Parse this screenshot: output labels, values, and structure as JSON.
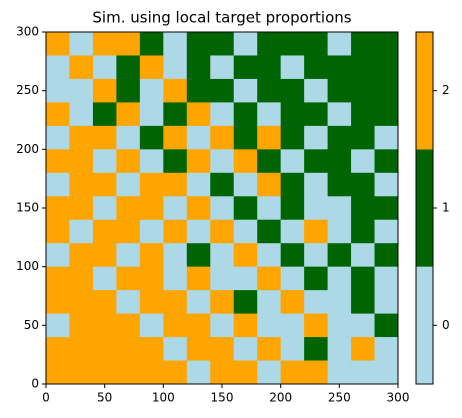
{
  "chart_data": {
    "type": "heatmap",
    "title": "Sim. using local target proportions",
    "xlim": [
      0,
      300
    ],
    "ylim": [
      0,
      300
    ],
    "xticks": [
      0,
      50,
      100,
      150,
      200,
      250,
      300
    ],
    "yticks": [
      0,
      50,
      100,
      150,
      200,
      250,
      300
    ],
    "z": [
      [
        2,
        0,
        2,
        2,
        1,
        0,
        1,
        1,
        0,
        1,
        1,
        1,
        0,
        1,
        1
      ],
      [
        0,
        2,
        0,
        1,
        2,
        0,
        1,
        0,
        1,
        1,
        0,
        1,
        1,
        1,
        1
      ],
      [
        0,
        0,
        2,
        1,
        0,
        2,
        1,
        1,
        0,
        1,
        1,
        0,
        1,
        1,
        1
      ],
      [
        2,
        0,
        1,
        2,
        0,
        1,
        2,
        0,
        1,
        0,
        1,
        1,
        0,
        1,
        1
      ],
      [
        0,
        2,
        2,
        0,
        1,
        2,
        0,
        2,
        1,
        2,
        1,
        0,
        1,
        1,
        0
      ],
      [
        2,
        2,
        0,
        2,
        0,
        1,
        2,
        0,
        2,
        1,
        0,
        1,
        1,
        0,
        1
      ],
      [
        0,
        2,
        2,
        0,
        2,
        2,
        0,
        1,
        0,
        2,
        1,
        0,
        1,
        1,
        0
      ],
      [
        2,
        2,
        0,
        2,
        2,
        0,
        2,
        0,
        1,
        0,
        1,
        0,
        0,
        1,
        1
      ],
      [
        2,
        0,
        2,
        2,
        0,
        2,
        0,
        2,
        0,
        1,
        0,
        2,
        0,
        1,
        0
      ],
      [
        0,
        2,
        2,
        0,
        2,
        0,
        1,
        0,
        2,
        0,
        1,
        0,
        1,
        0,
        1
      ],
      [
        2,
        2,
        0,
        2,
        2,
        0,
        2,
        0,
        0,
        2,
        0,
        1,
        0,
        1,
        0
      ],
      [
        2,
        2,
        2,
        0,
        2,
        2,
        0,
        2,
        1,
        0,
        2,
        0,
        0,
        1,
        0
      ],
      [
        0,
        2,
        2,
        2,
        0,
        2,
        2,
        0,
        2,
        0,
        0,
        2,
        0,
        0,
        1
      ],
      [
        2,
        2,
        2,
        2,
        2,
        0,
        2,
        2,
        0,
        2,
        0,
        1,
        0,
        2,
        0
      ],
      [
        2,
        2,
        2,
        2,
        2,
        2,
        0,
        2,
        2,
        0,
        2,
        2,
        0,
        0,
        0
      ]
    ],
    "colorbar": {
      "colors": [
        "#add8e6",
        "#006400",
        "#ffa500"
      ],
      "ticks": [
        0,
        1,
        2
      ],
      "lim": [
        -0.5,
        2.5
      ]
    }
  }
}
